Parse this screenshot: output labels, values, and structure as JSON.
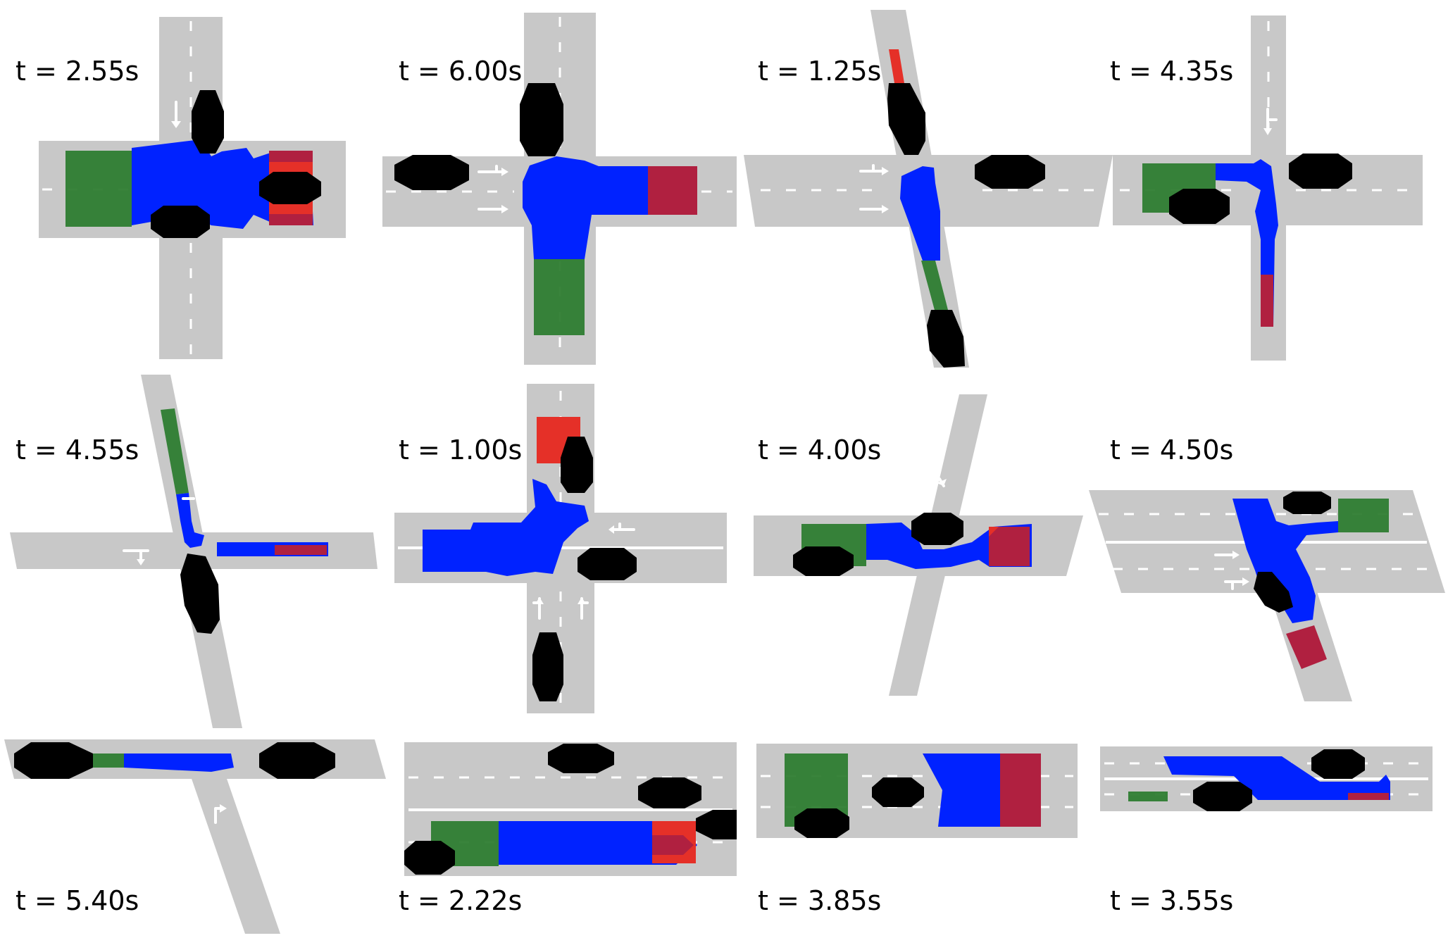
{
  "colors": {
    "road": "#c8c8c8",
    "start_region": "#2e7d32",
    "path_region": "#0022ff",
    "goal_region": "#e53028",
    "goal_overlap": "#b02040",
    "vehicle": "#000000",
    "markings": "#ffffff"
  },
  "panels": [
    {
      "time_label": "t = 2.55s"
    },
    {
      "time_label": "t = 6.00s"
    },
    {
      "time_label": "t = 1.25s"
    },
    {
      "time_label": "t = 4.35s"
    },
    {
      "time_label": "t = 4.55s"
    },
    {
      "time_label": "t = 1.00s"
    },
    {
      "time_label": "t = 4.00s"
    },
    {
      "time_label": "t = 4.50s"
    },
    {
      "time_label": "t = 5.40s"
    },
    {
      "time_label": "t = 2.22s"
    },
    {
      "time_label": "t = 3.85s"
    },
    {
      "time_label": "t = 3.55s"
    }
  ]
}
